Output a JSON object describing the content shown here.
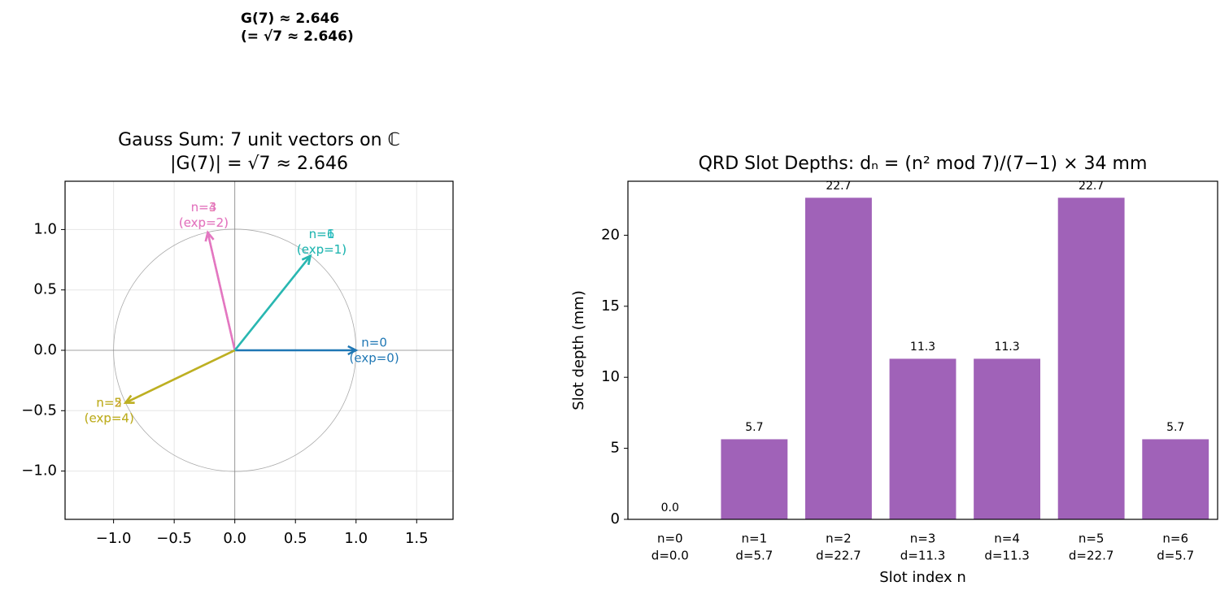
{
  "figure_text": [
    "G(7) ≈ 2.646",
    "(= √7 ≈ 2.646)"
  ],
  "chart_data": [
    {
      "type": "vector",
      "title": [
        "Gauss Sum: 7 unit vectors on ℂ",
        "|G(7)| = √7 ≈ 2.646"
      ],
      "xlim": [
        -1.4,
        1.8
      ],
      "ylim": [
        -1.4,
        1.4
      ],
      "xticks": [
        {
          "value": -1.0,
          "label": "−1.0"
        },
        {
          "value": -0.5,
          "label": "−0.5"
        },
        {
          "value": 0.0,
          "label": "0.0"
        },
        {
          "value": 0.5,
          "label": "0.5"
        },
        {
          "value": 1.0,
          "label": "1.0"
        },
        {
          "value": 1.5,
          "label": "1.5"
        }
      ],
      "yticks": [
        {
          "value": -1.0,
          "label": "−1.0"
        },
        {
          "value": -0.5,
          "label": "−0.5"
        },
        {
          "value": 0.0,
          "label": "0.0"
        },
        {
          "value": 0.5,
          "label": "0.5"
        },
        {
          "value": 1.0,
          "label": "1.0"
        }
      ],
      "grid": true,
      "vectors": [
        {
          "name": "n=0",
          "exp_label": "(exp=0)",
          "x": 1.0,
          "y": 0.0,
          "color": "#1f77b4"
        },
        {
          "name": "n=1",
          "exp_label": "(exp=1)",
          "x": 0.623,
          "y": 0.782,
          "color": "#17becf"
        },
        {
          "name": "n=2",
          "exp_label": "(exp=4)",
          "x": -0.901,
          "y": -0.434,
          "color": "#d4912a"
        },
        {
          "name": "n=3",
          "exp_label": "(exp=2)",
          "x": -0.223,
          "y": 0.975,
          "color": "#e36fa0"
        },
        {
          "name": "n=4",
          "exp_label": "(exp=2)",
          "x": -0.223,
          "y": 0.975,
          "color": "#e377c2"
        },
        {
          "name": "n=5",
          "exp_label": "(exp=4)",
          "x": -0.901,
          "y": -0.434,
          "color": "#bcb122"
        },
        {
          "name": "n=6",
          "exp_label": "(exp=1)",
          "x": 0.623,
          "y": 0.782,
          "color": "#2ab7b0"
        }
      ]
    },
    {
      "type": "bar",
      "title": "QRD Slot Depths: dₙ = (n² mod 7)/(7−1) × 34 mm",
      "xlabel": "Slot index n",
      "ylabel": "Slot depth (mm)",
      "categories": [
        "n=0",
        "n=1",
        "n=2",
        "n=3",
        "n=4",
        "n=5",
        "n=6"
      ],
      "category_sublabels": [
        "d=0.0",
        "d=5.7",
        "d=22.7",
        "d=11.3",
        "d=11.3",
        "d=22.7",
        "d=5.7"
      ],
      "values": [
        0,
        5.667,
        22.667,
        11.333,
        11.333,
        22.667,
        5.667
      ],
      "value_labels": [
        "0.0",
        "5.7",
        "22.7",
        "11.3",
        "11.3",
        "22.7",
        "5.7"
      ],
      "color": "#a062b8",
      "ylim": [
        0,
        23.8
      ],
      "yticks": [
        0,
        5,
        10,
        15,
        20
      ]
    }
  ]
}
